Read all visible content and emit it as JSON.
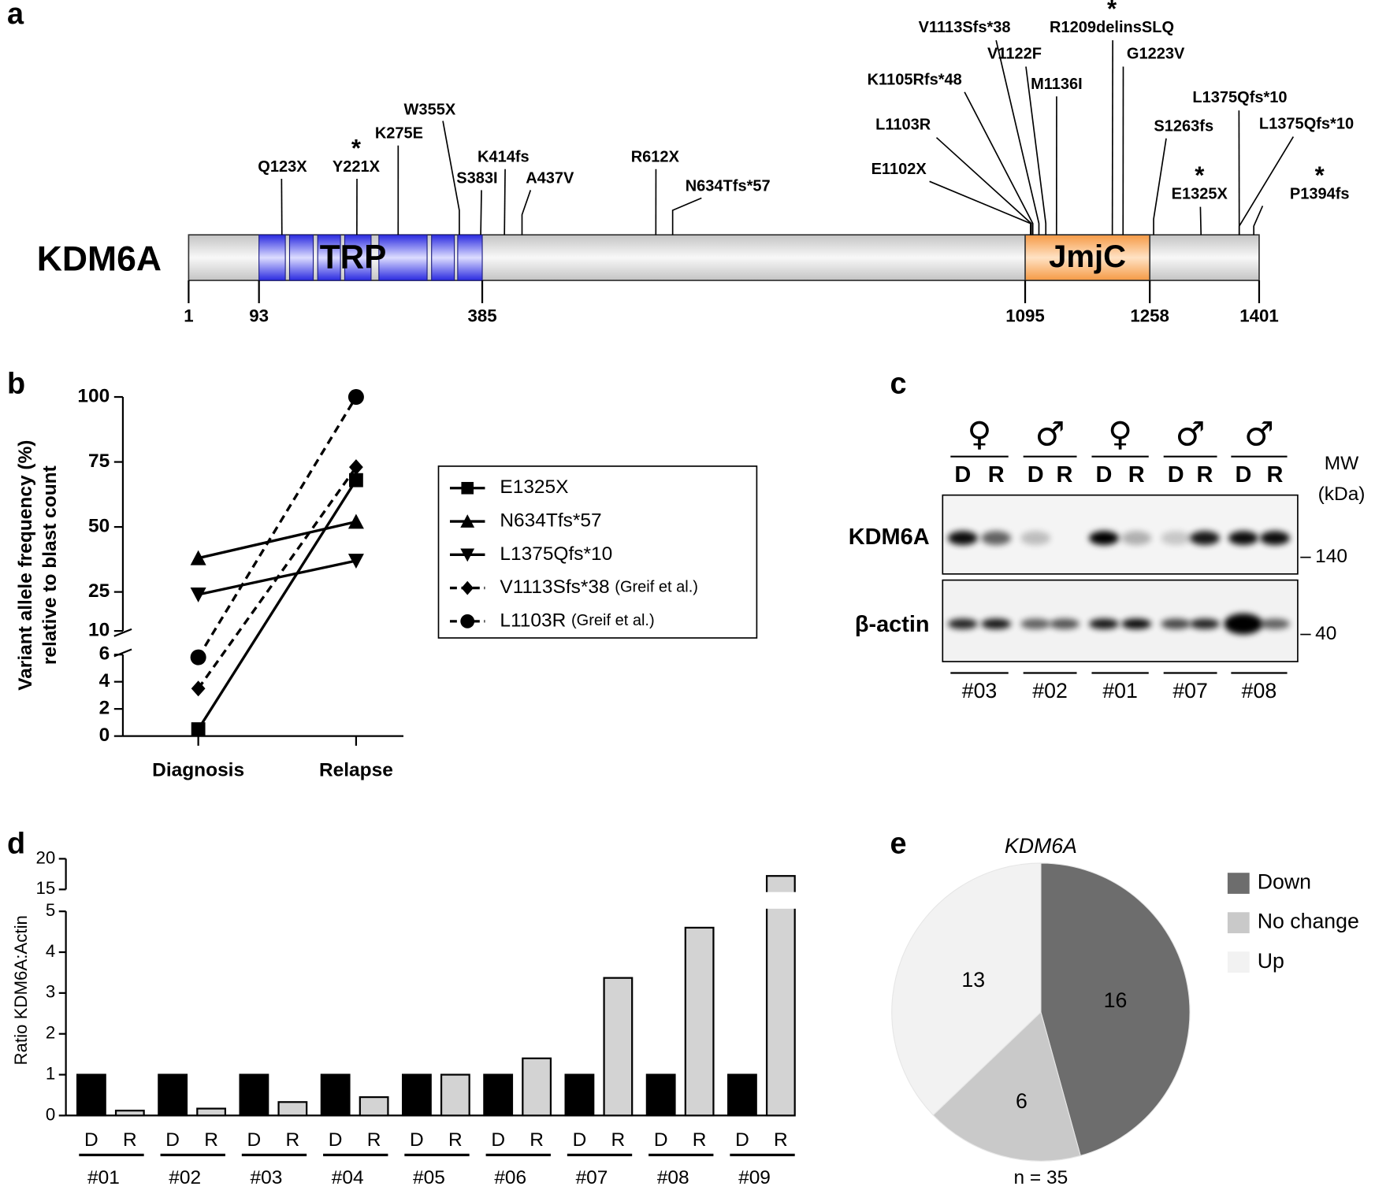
{
  "panel_a": {
    "label": "a",
    "protein": "KDM6A",
    "length_ticks": [
      1,
      93,
      385,
      1095,
      1258,
      1401
    ],
    "domains": [
      {
        "name": "TRP",
        "start": 93,
        "end": 385
      },
      {
        "name": "JmjC",
        "start": 1095,
        "end": 1258
      }
    ],
    "mutations": [
      {
        "name": "Q123X",
        "position": 123,
        "color": "#e8141b"
      },
      {
        "name": "Y221X",
        "position": 221,
        "color": "#e8141b",
        "annotation": "*"
      },
      {
        "name": "K275E",
        "position": 275,
        "color": "#000000"
      },
      {
        "name": "W355X",
        "position": 355,
        "color": "#e8141b"
      },
      {
        "name": "S383I",
        "position": 383,
        "color": "#000000"
      },
      {
        "name": "K414fs",
        "position": 414,
        "color": "#e8141b"
      },
      {
        "name": "A437V",
        "position": 437,
        "color": "#000000"
      },
      {
        "name": "R612X",
        "position": 612,
        "color": "#e8141b"
      },
      {
        "name": "N634Tfs*57",
        "position": 634,
        "color": "#e8141b"
      },
      {
        "name": "E1102X",
        "position": 1102,
        "color": "#e8141b"
      },
      {
        "name": "L1103R",
        "position": 1103,
        "color": "#000000"
      },
      {
        "name": "K1105Rfs*48",
        "position": 1105,
        "color": "#e8141b"
      },
      {
        "name": "V1113Sfs*38",
        "position": 1113,
        "color": "#e8141b"
      },
      {
        "name": "V1122F",
        "position": 1122,
        "color": "#000000"
      },
      {
        "name": "M1136I",
        "position": 1136,
        "color": "#000000"
      },
      {
        "name": "R1209delinsSLQ",
        "position": 1209,
        "color": "#000000",
        "annotation": "*"
      },
      {
        "name": "G1223V",
        "position": 1223,
        "color": "#000000"
      },
      {
        "name": "S1263fs",
        "position": 1263,
        "color": "#e8141b"
      },
      {
        "name": "E1325X",
        "position": 1325,
        "color": "#e8141b",
        "annotation": "*"
      },
      {
        "name": "L1375Qfs*10",
        "position": 1375,
        "color": "#e8141b"
      },
      {
        "name": "L1375Qfs*10",
        "position": 1375,
        "color": "#e8141b"
      },
      {
        "name": "P1394fs",
        "position": 1394,
        "color": "#e8141b",
        "annotation": "*"
      }
    ]
  },
  "chart_data": [
    {
      "type": "line",
      "panel_label": "b",
      "y_label": [
        "Variant allele frequency (%)",
        "relative to blast count"
      ],
      "categories": [
        "Diagnosis",
        "Relapse"
      ],
      "ylim": [
        0,
        100
      ],
      "y_break": [
        6,
        10
      ],
      "yticks": [
        0,
        2,
        4,
        6,
        10,
        25,
        50,
        75,
        100
      ],
      "series": [
        {
          "name": "E1325X",
          "marker": "square",
          "dashed": false,
          "color": "#000000",
          "values": [
            0.5,
            68
          ]
        },
        {
          "name": "N634Tfs*57",
          "marker": "triangle-up",
          "dashed": false,
          "color": "#000000",
          "values": [
            38,
            52
          ]
        },
        {
          "name": "L1375Qfs*10",
          "marker": "triangle-down",
          "dashed": false,
          "color": "#000000",
          "values": [
            24,
            37
          ]
        },
        {
          "name": "V1113Sfs*38",
          "reference": "(Greif et al.)",
          "marker": "diamond",
          "dashed": true,
          "color": "#000000",
          "values": [
            3.5,
            73
          ]
        },
        {
          "name": "L1103R",
          "reference": "(Greif et al.)",
          "marker": "circle",
          "dashed": true,
          "color": "#000000",
          "values": [
            5.8,
            100
          ]
        }
      ]
    },
    {
      "type": "bar",
      "panel_label": "d",
      "y_label": "Ratio KDM6A:Actin",
      "categories": [
        "#01",
        "#02",
        "#03",
        "#04",
        "#05",
        "#06",
        "#07",
        "#08",
        "#09"
      ],
      "ylim": [
        0,
        20
      ],
      "y_break": [
        5,
        15
      ],
      "yticks": [
        0,
        1,
        2,
        3,
        4,
        5,
        15,
        20
      ],
      "series": [
        {
          "name": "D",
          "color": "#000000",
          "values": [
            1,
            1,
            1,
            1,
            1,
            1,
            1,
            1,
            1
          ]
        },
        {
          "name": "R",
          "color": "#d3d3d3",
          "values": [
            0.12,
            0.17,
            0.33,
            0.45,
            1.0,
            1.4,
            3.37,
            4.6,
            17.2
          ]
        }
      ]
    },
    {
      "type": "pie",
      "panel_label": "e",
      "title": "KDM6A",
      "categories": [
        "Down",
        "No change",
        "Up"
      ],
      "values": [
        16,
        6,
        13
      ],
      "colors": [
        "#6d6d6d",
        "#c9c9c9",
        "#f2f2f2"
      ],
      "note": "n = 35"
    }
  ],
  "panel_c": {
    "label": "c",
    "samples": [
      {
        "id": "#03",
        "sex": "♀"
      },
      {
        "id": "#02",
        "sex": "♂"
      },
      {
        "id": "#01",
        "sex": "♀"
      },
      {
        "id": "#07",
        "sex": "♂"
      },
      {
        "id": "#08",
        "sex": "♂"
      }
    ],
    "lanes": [
      "D",
      "R"
    ],
    "blots": [
      "KDM6A",
      "β-actin"
    ],
    "mw_title": [
      "MW",
      "(kDa)"
    ],
    "mw_markers": [
      "140",
      "40"
    ]
  }
}
